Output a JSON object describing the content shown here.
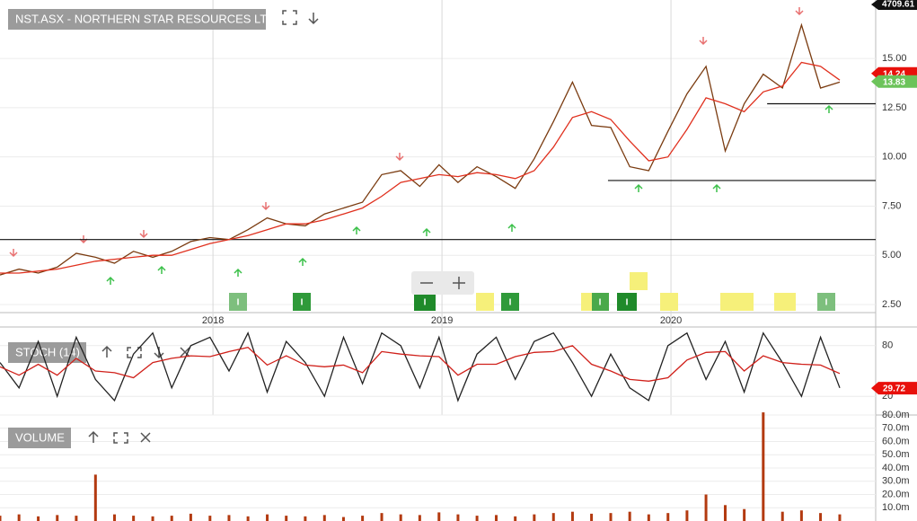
{
  "chart_data": [
    {
      "type": "line",
      "title": "NST.ASX - NORTHERN STAR RESOURCES LTD",
      "x": [
        2017.07,
        2017.153,
        2017.237,
        2017.32,
        2017.403,
        2017.487,
        2017.57,
        2017.653,
        2017.737,
        2017.82,
        2017.903,
        2017.987,
        2018.07,
        2018.153,
        2018.237,
        2018.32,
        2018.403,
        2018.487,
        2018.57,
        2018.653,
        2018.737,
        2018.82,
        2018.903,
        2018.987,
        2019.07,
        2019.153,
        2019.237,
        2019.32,
        2019.403,
        2019.487,
        2019.57,
        2019.653,
        2019.737,
        2019.82,
        2019.903,
        2019.987,
        2020.07,
        2020.153,
        2020.237,
        2020.32,
        2020.403,
        2020.487,
        2020.57,
        2020.653,
        2020.737
      ],
      "series": [
        {
          "color": "#7a3b10",
          "values": [
            4.0,
            4.3,
            4.1,
            4.4,
            5.1,
            4.9,
            4.6,
            5.2,
            4.9,
            5.2,
            5.7,
            5.9,
            5.8,
            6.3,
            6.9,
            6.6,
            6.5,
            7.1,
            7.4,
            7.7,
            9.1,
            9.3,
            8.5,
            9.6,
            8.7,
            9.5,
            9.0,
            8.4,
            9.9,
            11.8,
            13.8,
            11.6,
            11.5,
            9.5,
            9.3,
            11.3,
            13.2,
            14.6,
            10.3,
            12.7,
            14.2,
            13.5,
            16.7,
            13.5,
            13.8
          ]
        },
        {
          "color": "#e0301e",
          "values": [
            4.1,
            4.1,
            4.2,
            4.3,
            4.5,
            4.7,
            4.8,
            4.9,
            5.0,
            5.0,
            5.3,
            5.6,
            5.8,
            6.0,
            6.3,
            6.6,
            6.6,
            6.8,
            7.1,
            7.4,
            8.0,
            8.7,
            8.9,
            9.1,
            9.0,
            9.2,
            9.1,
            8.9,
            9.3,
            10.5,
            12.0,
            12.3,
            11.9,
            10.8,
            9.8,
            10.0,
            11.4,
            13.0,
            12.7,
            12.3,
            13.3,
            13.6,
            14.8,
            14.6,
            13.9
          ]
        }
      ],
      "xlim": [
        2017.07,
        2020.894
      ],
      "xticks": [
        2018,
        2019,
        2020
      ],
      "ylim": [
        2.09,
        17.97
      ],
      "yticks": [
        {
          "value": 2.5,
          "label": "2.50"
        },
        {
          "value": 5,
          "label": "5.00"
        },
        {
          "value": 7.5,
          "label": "7.50"
        },
        {
          "value": 10,
          "label": "10.00"
        },
        {
          "value": 12.5,
          "label": "12.50"
        },
        {
          "value": 15,
          "label": "15.00"
        }
      ],
      "grid": true,
      "support_lines": [
        {
          "value": 5.8,
          "from": 2017.07
        },
        {
          "value": 8.8,
          "from": 2019.725
        },
        {
          "value": 12.7,
          "from": 2020.42
        }
      ],
      "price_tags": [
        {
          "value": 14.24,
          "color": "#e8100b"
        },
        {
          "value": 13.83,
          "color": "#6cc35a"
        }
      ],
      "index_value": 4709.61,
      "event_label": "I"
    },
    {
      "type": "line",
      "title": "STOCH (14)",
      "x": [
        2017.07,
        2017.153,
        2017.237,
        2017.32,
        2017.403,
        2017.487,
        2017.57,
        2017.653,
        2017.737,
        2017.82,
        2017.903,
        2017.987,
        2018.07,
        2018.153,
        2018.237,
        2018.32,
        2018.403,
        2018.487,
        2018.57,
        2018.653,
        2018.737,
        2018.82,
        2018.903,
        2018.987,
        2019.07,
        2019.153,
        2019.237,
        2019.32,
        2019.403,
        2019.487,
        2019.57,
        2019.653,
        2019.737,
        2019.82,
        2019.903,
        2019.987,
        2020.07,
        2020.153,
        2020.237,
        2020.32,
        2020.403,
        2020.487,
        2020.57,
        2020.653,
        2020.737
      ],
      "series": [
        {
          "color": "#222222",
          "values": [
            60,
            30,
            85,
            20,
            90,
            40,
            15,
            70,
            95,
            30,
            80,
            90,
            50,
            95,
            25,
            85,
            60,
            20,
            90,
            35,
            95,
            80,
            30,
            90,
            15,
            70,
            90,
            40,
            85,
            95,
            60,
            20,
            70,
            30,
            15,
            80,
            95,
            40,
            85,
            25,
            95,
            60,
            20,
            90,
            30
          ]
        },
        {
          "color": "#d0201a",
          "values": [
            55,
            45,
            58,
            45,
            65,
            50,
            48,
            42,
            60,
            65,
            68,
            67,
            73,
            78,
            57,
            68,
            57,
            55,
            57,
            48,
            73,
            70,
            68,
            67,
            45,
            58,
            58,
            67,
            72,
            73,
            80,
            58,
            50,
            40,
            38,
            42,
            63,
            72,
            73,
            50,
            68,
            60,
            58,
            57,
            47
          ]
        }
      ],
      "xlim": [
        2017.07,
        2020.894
      ],
      "ylim": [
        -2.1,
        102.1
      ],
      "yticks": [
        20,
        80
      ],
      "grid": true,
      "price_tags": [
        {
          "value": 29.72,
          "color": "#e8100b"
        }
      ]
    },
    {
      "type": "bar",
      "title": "VOLUME",
      "color": "#b33a10",
      "x": [
        2017.07,
        2017.153,
        2017.237,
        2017.32,
        2017.403,
        2017.487,
        2017.57,
        2017.653,
        2017.737,
        2017.82,
        2017.903,
        2017.987,
        2018.07,
        2018.153,
        2018.237,
        2018.32,
        2018.403,
        2018.487,
        2018.57,
        2018.653,
        2018.737,
        2018.82,
        2018.903,
        2018.987,
        2019.07,
        2019.153,
        2019.237,
        2019.32,
        2019.403,
        2019.487,
        2019.57,
        2019.653,
        2019.737,
        2019.82,
        2019.903,
        2019.987,
        2020.07,
        2020.153,
        2020.237,
        2020.32,
        2020.403,
        2020.487,
        2020.57,
        2020.653,
        2020.737
      ],
      "values": [
        4000000,
        5000000,
        3500000,
        4500000,
        4000000,
        35000000,
        5000000,
        4000000,
        3500000,
        4000000,
        5500000,
        4000000,
        4500000,
        3500000,
        5000000,
        4000000,
        3500000,
        4500000,
        3000000,
        4000000,
        6000000,
        5000000,
        4500000,
        6500000,
        5000000,
        4000000,
        4500000,
        3500000,
        5000000,
        6000000,
        7000000,
        5500000,
        6000000,
        7000000,
        5000000,
        6000000,
        8000000,
        20000000,
        12000000,
        9000000,
        82000000,
        7000000,
        8000000,
        6000000,
        5000000
      ],
      "xlim": [
        2017.07,
        2020.894
      ],
      "ylim": [
        0,
        80000000
      ],
      "yticks": [
        {
          "value": 10000000,
          "label": "10.0m"
        },
        {
          "value": 20000000,
          "label": "20.0m"
        },
        {
          "value": 30000000,
          "label": "30.0m"
        },
        {
          "value": 40000000,
          "label": "40.0m"
        },
        {
          "value": 50000000,
          "label": "50.0m"
        },
        {
          "value": 60000000,
          "label": "60.0m"
        },
        {
          "value": 70000000,
          "label": "70.0m"
        },
        {
          "value": 80000000,
          "label": "80.0m"
        }
      ],
      "grid": true
    }
  ]
}
